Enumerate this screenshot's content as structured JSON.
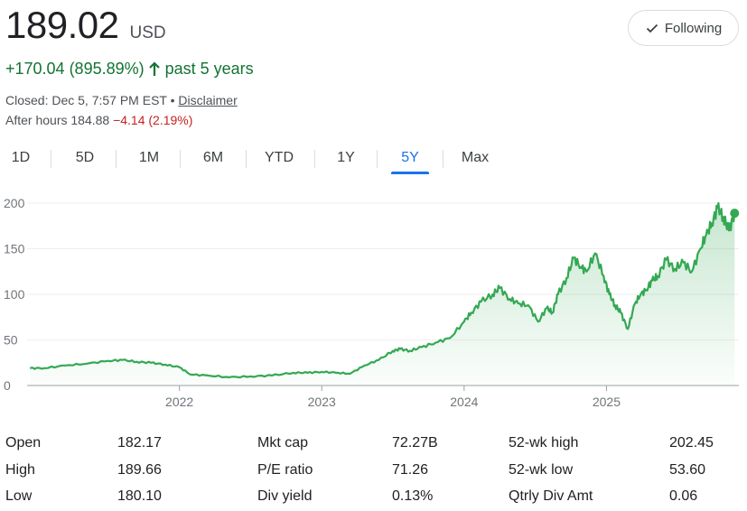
{
  "quote": {
    "price": "189.02",
    "currency": "USD",
    "change": "+170.04 (895.89%)",
    "change_period": "past 5 years",
    "closed_text": "Closed: Dec 5, 7:57 PM EST •",
    "disclaimer": "Disclaimer",
    "after_hours_label": "After hours 184.88",
    "after_hours_change": "−4.14 (2.19%)"
  },
  "follow_button": {
    "label": "Following"
  },
  "tabs": [
    {
      "label": "1D"
    },
    {
      "label": "5D"
    },
    {
      "label": "1M"
    },
    {
      "label": "6M"
    },
    {
      "label": "YTD"
    },
    {
      "label": "1Y"
    },
    {
      "label": "5Y",
      "active": true
    },
    {
      "label": "Max"
    }
  ],
  "colors": {
    "line": "#34a853",
    "positive": "#137333",
    "negative": "#c5221f",
    "accent": "#1a73e8"
  },
  "chart_data": {
    "type": "area",
    "y_ticks": [
      "0",
      "50",
      "100",
      "150",
      "200"
    ],
    "x_ticks": [
      "2022",
      "2023",
      "2024",
      "2025"
    ],
    "ylim": [
      0,
      205
    ],
    "xlim": [
      2020.93,
      2025.93
    ],
    "grid": true,
    "series": [
      {
        "x": [
          2020.95,
          2021.05,
          2021.2,
          2021.35,
          2021.5,
          2021.6,
          2021.7,
          2021.8,
          2021.9,
          2022.0,
          2022.08,
          2022.2,
          2022.35,
          2022.5,
          2022.65,
          2022.8,
          2022.9,
          2023.0,
          2023.1,
          2023.2,
          2023.3,
          2023.4,
          2023.5,
          2023.55,
          2023.62,
          2023.7,
          2023.8,
          2023.9,
          2024.0,
          2024.05,
          2024.12,
          2024.2,
          2024.25,
          2024.32,
          2024.38,
          2024.45,
          2024.52,
          2024.58,
          2024.62,
          2024.66,
          2024.72,
          2024.77,
          2024.82,
          2024.86,
          2024.92,
          2024.98,
          2025.02,
          2025.06,
          2025.1,
          2025.15,
          2025.2,
          2025.24,
          2025.28,
          2025.32,
          2025.36,
          2025.42,
          2025.48,
          2025.54,
          2025.6,
          2025.66,
          2025.7,
          2025.74,
          2025.78,
          2025.82,
          2025.86,
          2025.9
        ],
        "y": [
          19,
          19,
          22,
          24,
          27,
          28,
          26,
          25,
          23,
          20,
          12,
          11,
          9,
          10,
          11,
          14,
          14,
          15,
          14,
          13,
          22,
          28,
          38,
          40,
          38,
          42,
          47,
          52,
          70,
          80,
          92,
          100,
          107,
          95,
          90,
          88,
          70,
          85,
          80,
          100,
          118,
          140,
          130,
          125,
          145,
          120,
          100,
          88,
          80,
          62,
          90,
          100,
          105,
          115,
          120,
          138,
          128,
          135,
          125,
          150,
          165,
          178,
          195,
          185,
          170,
          189
        ]
      }
    ]
  },
  "stats": {
    "rows": [
      [
        {
          "label": "Open",
          "value": "182.17"
        },
        {
          "label": "Mkt cap",
          "value": "72.27B"
        },
        {
          "label": "52-wk high",
          "value": "202.45"
        }
      ],
      [
        {
          "label": "High",
          "value": "189.66"
        },
        {
          "label": "P/E ratio",
          "value": "71.26"
        },
        {
          "label": "52-wk low",
          "value": "53.60"
        }
      ],
      [
        {
          "label": "Low",
          "value": "180.10"
        },
        {
          "label": "Div yield",
          "value": "0.13%"
        },
        {
          "label": "Qtrly Div Amt",
          "value": "0.06"
        }
      ]
    ]
  }
}
